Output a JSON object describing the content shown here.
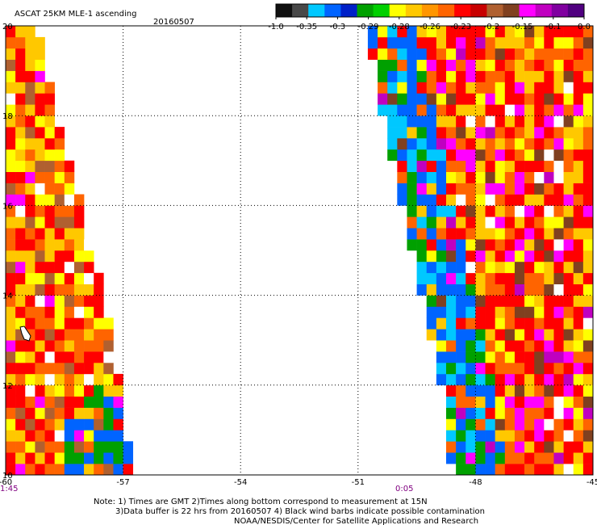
{
  "header": {
    "title": "ASCAT 25KM MLE-1 ascending",
    "date": "20160507"
  },
  "colorbar": {
    "labels": [
      "-1.0",
      "-0.35",
      "-0.3",
      "-0.29",
      "-0.28",
      "-0.26",
      "-0.23",
      "-0.2",
      "-0.15",
      "-0.1",
      "0.0"
    ],
    "colors": [
      "#101010",
      "#484848",
      "#00c8ff",
      "#0064ff",
      "#0020c8",
      "#00a000",
      "#00d000",
      "#ffff00",
      "#ffc800",
      "#ff9600",
      "#ff6400",
      "#ff0000",
      "#c80000",
      "#b06030",
      "#804020",
      "#ff00ff",
      "#c000c0",
      "#8000a0",
      "#500080"
    ]
  },
  "axes": {
    "lon_ticks": [
      "-60",
      "-57",
      "-54",
      "-51",
      "-48",
      "-45"
    ],
    "lat_ticks": [
      "20",
      "18",
      "16",
      "14",
      "12",
      "10"
    ],
    "time_left": "1:45",
    "time_right": "0:05"
  },
  "notes": {
    "line1": "Note: 1) Times are GMT 2)Times along bottom correspond to measurement at 15N",
    "line2": "3)Data buffer is 22 hrs from 20160507 4) Black wind barbs indicate possible contamination",
    "line3": "NOAA/NESDIS/Center for Satellite Applications and Research"
  },
  "chart_data": {
    "type": "heatmap",
    "title": "ASCAT 25KM MLE-1 ascending",
    "date": "20160507",
    "x_range": [
      -60,
      -45
    ],
    "y_range": [
      10,
      20
    ],
    "x_ticks": [
      -60,
      -57,
      -54,
      -51,
      -48,
      -45
    ],
    "y_ticks": [
      10,
      12,
      14,
      16,
      18,
      20
    ],
    "grid": true,
    "colorbar_values": [
      -1.0,
      -0.35,
      -0.3,
      -0.29,
      -0.28,
      -0.26,
      -0.23,
      -0.2,
      -0.15,
      -0.1,
      0.0
    ],
    "swaths": [
      {
        "dominant_colors": [
          "#ff0000",
          "#ff6400",
          "#ffc800",
          "#ffff00",
          "#b06030"
        ],
        "lower_region_colors": [
          "#0064ff",
          "#00a000"
        ],
        "left_boundary_lon": [
          -60.0,
          -60.0
        ],
        "right_boundary_lon_at_lat": [
          [
            20,
            -59.3
          ],
          [
            18,
            -58.8
          ],
          [
            16,
            -58.2
          ],
          [
            14,
            -57.6
          ],
          [
            12,
            -57.2
          ],
          [
            10,
            -56.9
          ]
        ]
      },
      {
        "dominant_colors": [
          "#ff0000",
          "#ff6400",
          "#ffc800",
          "#ffff00",
          "#804020",
          "#ff00ff"
        ],
        "left_region_colors": [
          "#0064ff",
          "#00c8ff"
        ],
        "left_boundary_lon_at_lat": [
          [
            20,
            -50.9
          ],
          [
            18,
            -50.5
          ],
          [
            16,
            -50.0
          ],
          [
            14,
            -49.5
          ],
          [
            12,
            -49.0
          ],
          [
            10,
            -48.7
          ]
        ],
        "right_boundary_lon": [
          -45.0,
          -45.0
        ]
      }
    ]
  }
}
